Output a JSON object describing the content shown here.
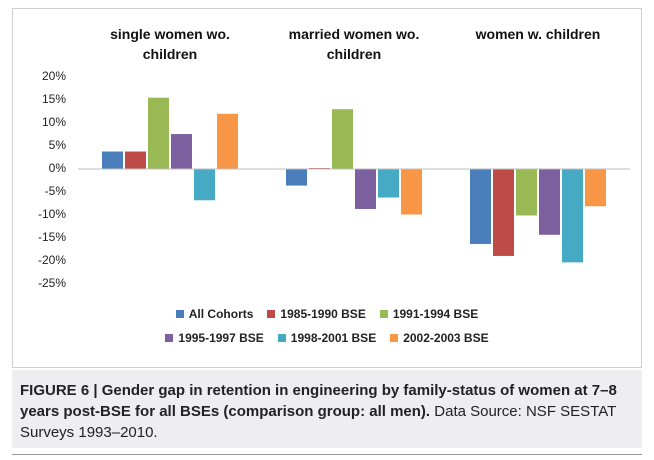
{
  "chart_data": {
    "type": "bar",
    "categories": [
      "single women wo. children",
      "married women wo. children",
      "women w. children"
    ],
    "series": [
      {
        "name": "All Cohorts",
        "color": "#4a7ebb",
        "values": [
          3.8,
          -3.6,
          -16.3
        ]
      },
      {
        "name": "1985-1990 BSE",
        "color": "#be4b48",
        "values": [
          3.8,
          0.2,
          -18.9
        ]
      },
      {
        "name": "1991-1994 BSE",
        "color": "#98b954",
        "values": [
          15.5,
          13,
          -10.1
        ]
      },
      {
        "name": "1995-1997 BSE",
        "color": "#7d60a0",
        "values": [
          7.6,
          -8.7,
          -14.3
        ]
      },
      {
        "name": "1998-2001 BSE",
        "color": "#46aac5",
        "values": [
          -6.8,
          -6.2,
          -20.3
        ]
      },
      {
        "name": "2002-2003 BSE",
        "color": "#f79646",
        "values": [
          12,
          -9.9,
          -8.1
        ]
      }
    ],
    "ylim": [
      -25,
      20
    ],
    "yticks": [
      {
        "value": 20,
        "label": "20%"
      },
      {
        "value": 15,
        "label": "15%"
      },
      {
        "value": 10,
        "label": "10%"
      },
      {
        "value": 5,
        "label": "5%"
      },
      {
        "value": 0,
        "label": "0%"
      },
      {
        "value": -5,
        "label": "-5%"
      },
      {
        "value": -10,
        "label": "-10%"
      },
      {
        "value": -15,
        "label": "-15%"
      },
      {
        "value": -20,
        "label": "-20%"
      },
      {
        "value": -25,
        "label": "-25%"
      }
    ],
    "grid": false,
    "legend": "bottom"
  },
  "caption": {
    "title": "FIGURE 6 | Gender gap in retention in engineering by family-status of women at 7–8 years post-BSE for all BSEs (comparison group: all men).",
    "source": "Data Source: NSF SESTAT Surveys 1993–2010."
  }
}
